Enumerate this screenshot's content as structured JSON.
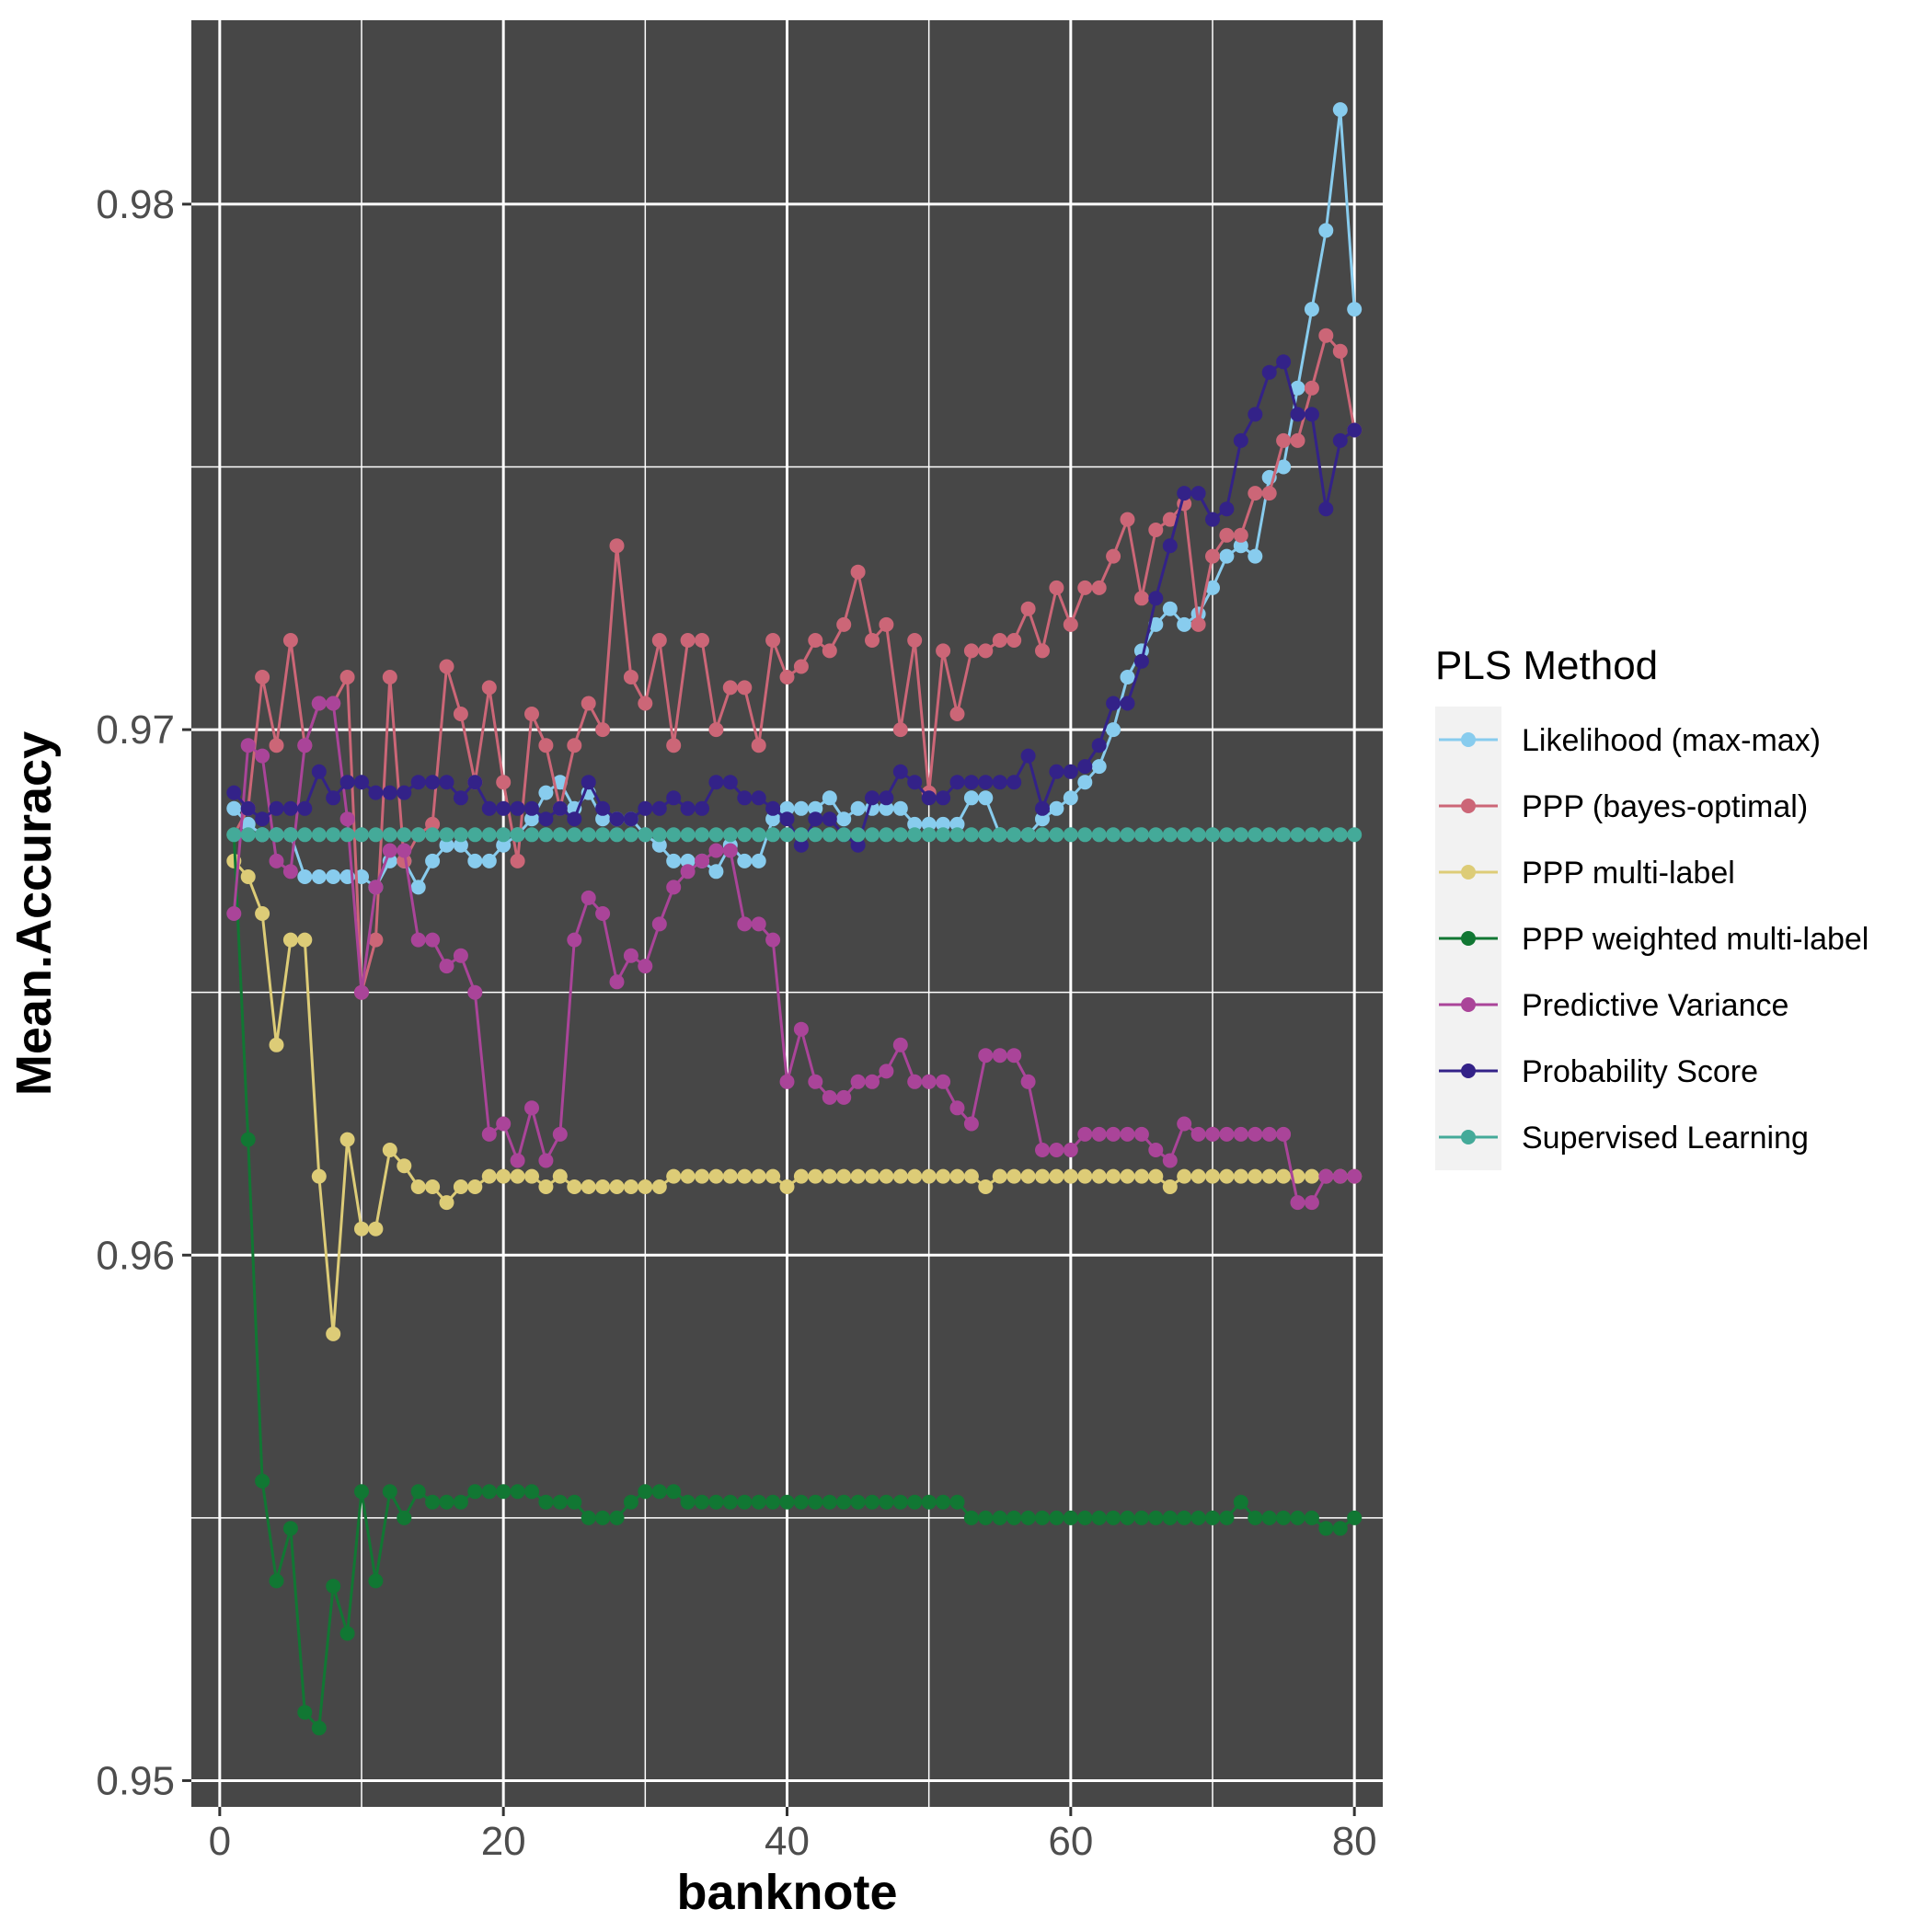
{
  "chart_data": {
    "type": "line",
    "title": "",
    "xlabel": "banknote",
    "ylabel": "Mean.Accuracy",
    "xlim": [
      -2,
      82
    ],
    "ylim": [
      0.9495,
      0.9835
    ],
    "x_ticks": [
      0,
      20,
      40,
      60,
      80
    ],
    "x_tick_labels": [
      "0",
      "20",
      "40",
      "60",
      "80"
    ],
    "y_ticks": [
      0.95,
      0.96,
      0.97,
      0.98
    ],
    "y_tick_labels": [
      "0.95",
      "0.96",
      "0.97",
      "0.98"
    ],
    "grid": true,
    "background": "#474747",
    "legend": {
      "title": "PLS Method",
      "placement": "right"
    },
    "series": [
      {
        "name": "Likelihood (max-max)",
        "color": "#88CCEE",
        "x": [
          1,
          2,
          3,
          4,
          5,
          6,
          7,
          8,
          9,
          10,
          11,
          12,
          13,
          14,
          15,
          16,
          17,
          18,
          19,
          20,
          21,
          22,
          23,
          24,
          25,
          26,
          27,
          28,
          29,
          30,
          31,
          32,
          33,
          34,
          35,
          36,
          37,
          38,
          39,
          40,
          41,
          42,
          43,
          44,
          45,
          46,
          47,
          48,
          49,
          50,
          51,
          52,
          53,
          54,
          55,
          56,
          57,
          58,
          59,
          60,
          61,
          62,
          63,
          64,
          65,
          66,
          67,
          68,
          69,
          70,
          71,
          72,
          73,
          74,
          75,
          76,
          77,
          78,
          79,
          80
        ],
        "values": [
          0.9685,
          0.9682,
          0.968,
          0.968,
          0.968,
          0.9672,
          0.9672,
          0.9672,
          0.9672,
          0.9672,
          0.967,
          0.9675,
          0.9675,
          0.967,
          0.9675,
          0.9678,
          0.9678,
          0.9675,
          0.9675,
          0.9678,
          0.968,
          0.9683,
          0.9688,
          0.969,
          0.9685,
          0.9688,
          0.9683,
          0.9683,
          0.9683,
          0.968,
          0.9678,
          0.9675,
          0.9675,
          0.9675,
          0.9673,
          0.9678,
          0.9675,
          0.9675,
          0.9683,
          0.9685,
          0.9685,
          0.9685,
          0.9687,
          0.9683,
          0.9685,
          0.9685,
          0.9685,
          0.9685,
          0.9682,
          0.9682,
          0.9682,
          0.9682,
          0.9687,
          0.9687,
          0.968,
          0.968,
          0.968,
          0.9683,
          0.9685,
          0.9687,
          0.969,
          0.9693,
          0.97,
          0.971,
          0.9715,
          0.972,
          0.9723,
          0.972,
          0.9722,
          0.9727,
          0.9733,
          0.9735,
          0.9733,
          0.9748,
          0.975,
          0.9765,
          0.978,
          0.9795,
          0.9818,
          0.978
        ]
      },
      {
        "name": "PPP (bayes-optimal)",
        "color": "#CC6677",
        "x": [
          1,
          2,
          3,
          4,
          5,
          6,
          7,
          8,
          9,
          10,
          11,
          12,
          13,
          14,
          15,
          16,
          17,
          18,
          19,
          20,
          21,
          22,
          23,
          24,
          25,
          26,
          27,
          28,
          29,
          30,
          31,
          32,
          33,
          34,
          35,
          36,
          37,
          38,
          39,
          40,
          41,
          42,
          43,
          44,
          45,
          46,
          47,
          48,
          49,
          50,
          51,
          52,
          53,
          54,
          55,
          56,
          57,
          58,
          59,
          60,
          61,
          62,
          63,
          64,
          65,
          66,
          67,
          68,
          69,
          70,
          71,
          72,
          73,
          74,
          75,
          76,
          77,
          78,
          79,
          80
        ],
        "values": [
          0.968,
          0.9685,
          0.971,
          0.9697,
          0.9717,
          0.9697,
          0.9705,
          0.9705,
          0.971,
          0.965,
          0.966,
          0.971,
          0.9675,
          0.968,
          0.9682,
          0.9712,
          0.9703,
          0.969,
          0.9708,
          0.969,
          0.9675,
          0.9703,
          0.9697,
          0.9685,
          0.9697,
          0.9705,
          0.97,
          0.9735,
          0.971,
          0.9705,
          0.9717,
          0.9697,
          0.9717,
          0.9717,
          0.97,
          0.9708,
          0.9708,
          0.9697,
          0.9717,
          0.971,
          0.9712,
          0.9717,
          0.9715,
          0.972,
          0.973,
          0.9717,
          0.972,
          0.97,
          0.9717,
          0.9688,
          0.9715,
          0.9703,
          0.9715,
          0.9715,
          0.9717,
          0.9717,
          0.9723,
          0.9715,
          0.9727,
          0.972,
          0.9727,
          0.9727,
          0.9733,
          0.974,
          0.9725,
          0.9738,
          0.974,
          0.9743,
          0.972,
          0.9733,
          0.9737,
          0.9737,
          0.9745,
          0.9745,
          0.9755,
          0.9755,
          0.9765,
          0.9775,
          0.9772,
          0.9757
        ]
      },
      {
        "name": "PPP multi-label",
        "color": "#DDCC77",
        "x": [
          1,
          2,
          3,
          4,
          5,
          6,
          7,
          8,
          9,
          10,
          11,
          12,
          13,
          14,
          15,
          16,
          17,
          18,
          19,
          20,
          21,
          22,
          23,
          24,
          25,
          26,
          27,
          28,
          29,
          30,
          31,
          32,
          33,
          34,
          35,
          36,
          37,
          38,
          39,
          40,
          41,
          42,
          43,
          44,
          45,
          46,
          47,
          48,
          49,
          50,
          51,
          52,
          53,
          54,
          55,
          56,
          57,
          58,
          59,
          60,
          61,
          62,
          63,
          64,
          65,
          66,
          67,
          68,
          69,
          70,
          71,
          72,
          73,
          74,
          75,
          76,
          77,
          78,
          79,
          80
        ],
        "values": [
          0.9675,
          0.9672,
          0.9665,
          0.964,
          0.966,
          0.966,
          0.9615,
          0.9585,
          0.9622,
          0.9605,
          0.9605,
          0.962,
          0.9617,
          0.9613,
          0.9613,
          0.961,
          0.9613,
          0.9613,
          0.9615,
          0.9615,
          0.9615,
          0.9615,
          0.9613,
          0.9615,
          0.9613,
          0.9613,
          0.9613,
          0.9613,
          0.9613,
          0.9613,
          0.9613,
          0.9615,
          0.9615,
          0.9615,
          0.9615,
          0.9615,
          0.9615,
          0.9615,
          0.9615,
          0.9613,
          0.9615,
          0.9615,
          0.9615,
          0.9615,
          0.9615,
          0.9615,
          0.9615,
          0.9615,
          0.9615,
          0.9615,
          0.9615,
          0.9615,
          0.9615,
          0.9613,
          0.9615,
          0.9615,
          0.9615,
          0.9615,
          0.9615,
          0.9615,
          0.9615,
          0.9615,
          0.9615,
          0.9615,
          0.9615,
          0.9615,
          0.9613,
          0.9615,
          0.9615,
          0.9615,
          0.9615,
          0.9615,
          0.9615,
          0.9615,
          0.9615,
          0.9615,
          0.9615,
          0.9615,
          0.9615,
          0.9615
        ]
      },
      {
        "name": "PPP weighted multi-label",
        "color": "#117733",
        "x": [
          1,
          2,
          3,
          4,
          5,
          6,
          7,
          8,
          9,
          10,
          11,
          12,
          13,
          14,
          15,
          16,
          17,
          18,
          19,
          20,
          21,
          22,
          23,
          24,
          25,
          26,
          27,
          28,
          29,
          30,
          31,
          32,
          33,
          34,
          35,
          36,
          37,
          38,
          39,
          40,
          41,
          42,
          43,
          44,
          45,
          46,
          47,
          48,
          49,
          50,
          51,
          52,
          53,
          54,
          55,
          56,
          57,
          58,
          59,
          60,
          61,
          62,
          63,
          64,
          65,
          66,
          67,
          68,
          69,
          70,
          71,
          72,
          73,
          74,
          75,
          76,
          77,
          78,
          79,
          80
        ],
        "values": [
          0.968,
          0.9622,
          0.9557,
          0.9538,
          0.9548,
          0.9513,
          0.951,
          0.9537,
          0.9528,
          0.9555,
          0.9538,
          0.9555,
          0.955,
          0.9555,
          0.9553,
          0.9553,
          0.9553,
          0.9555,
          0.9555,
          0.9555,
          0.9555,
          0.9555,
          0.9553,
          0.9553,
          0.9553,
          0.955,
          0.955,
          0.955,
          0.9553,
          0.9555,
          0.9555,
          0.9555,
          0.9553,
          0.9553,
          0.9553,
          0.9553,
          0.9553,
          0.9553,
          0.9553,
          0.9553,
          0.9553,
          0.9553,
          0.9553,
          0.9553,
          0.9553,
          0.9553,
          0.9553,
          0.9553,
          0.9553,
          0.9553,
          0.9553,
          0.9553,
          0.955,
          0.955,
          0.955,
          0.955,
          0.955,
          0.955,
          0.955,
          0.955,
          0.955,
          0.955,
          0.955,
          0.955,
          0.955,
          0.955,
          0.955,
          0.955,
          0.955,
          0.955,
          0.955,
          0.9553,
          0.955,
          0.955,
          0.955,
          0.955,
          0.955,
          0.9548,
          0.9548,
          0.955
        ]
      },
      {
        "name": "Predictive Variance",
        "color": "#AA4499",
        "x": [
          1,
          2,
          3,
          4,
          5,
          6,
          7,
          8,
          9,
          10,
          11,
          12,
          13,
          14,
          15,
          16,
          17,
          18,
          19,
          20,
          21,
          22,
          23,
          24,
          25,
          26,
          27,
          28,
          29,
          30,
          31,
          32,
          33,
          34,
          35,
          36,
          37,
          38,
          39,
          40,
          41,
          42,
          43,
          44,
          45,
          46,
          47,
          48,
          49,
          50,
          51,
          52,
          53,
          54,
          55,
          56,
          57,
          58,
          59,
          60,
          61,
          62,
          63,
          64,
          65,
          66,
          67,
          68,
          69,
          70,
          71,
          72,
          73,
          74,
          75,
          76,
          77,
          78,
          79,
          80
        ],
        "values": [
          0.9665,
          0.9697,
          0.9695,
          0.9675,
          0.9673,
          0.9697,
          0.9705,
          0.9705,
          0.9683,
          0.965,
          0.967,
          0.9677,
          0.9677,
          0.966,
          0.966,
          0.9655,
          0.9657,
          0.965,
          0.9623,
          0.9625,
          0.9618,
          0.9628,
          0.9618,
          0.9623,
          0.966,
          0.9668,
          0.9665,
          0.9652,
          0.9657,
          0.9655,
          0.9663,
          0.967,
          0.9673,
          0.9675,
          0.9677,
          0.9677,
          0.9663,
          0.9663,
          0.966,
          0.9633,
          0.9643,
          0.9633,
          0.963,
          0.963,
          0.9633,
          0.9633,
          0.9635,
          0.964,
          0.9633,
          0.9633,
          0.9633,
          0.9628,
          0.9625,
          0.9638,
          0.9638,
          0.9638,
          0.9633,
          0.962,
          0.962,
          0.962,
          0.9623,
          0.9623,
          0.9623,
          0.9623,
          0.9623,
          0.962,
          0.9618,
          0.9625,
          0.9623,
          0.9623,
          0.9623,
          0.9623,
          0.9623,
          0.9623,
          0.9623,
          0.961,
          0.961,
          0.9615,
          0.9615,
          0.9615
        ]
      },
      {
        "name": "Probability Score",
        "color": "#332288",
        "x": [
          1,
          2,
          3,
          4,
          5,
          6,
          7,
          8,
          9,
          10,
          11,
          12,
          13,
          14,
          15,
          16,
          17,
          18,
          19,
          20,
          21,
          22,
          23,
          24,
          25,
          26,
          27,
          28,
          29,
          30,
          31,
          32,
          33,
          34,
          35,
          36,
          37,
          38,
          39,
          40,
          41,
          42,
          43,
          44,
          45,
          46,
          47,
          48,
          49,
          50,
          51,
          52,
          53,
          54,
          55,
          56,
          57,
          58,
          59,
          60,
          61,
          62,
          63,
          64,
          65,
          66,
          67,
          68,
          69,
          70,
          71,
          72,
          73,
          74,
          75,
          76,
          77,
          78,
          79,
          80
        ],
        "values": [
          0.9688,
          0.9685,
          0.9683,
          0.9685,
          0.9685,
          0.9685,
          0.9692,
          0.9687,
          0.969,
          0.969,
          0.9688,
          0.9688,
          0.9688,
          0.969,
          0.969,
          0.969,
          0.9687,
          0.969,
          0.9685,
          0.9685,
          0.9685,
          0.9685,
          0.9683,
          0.9685,
          0.9683,
          0.969,
          0.9685,
          0.9683,
          0.9683,
          0.9685,
          0.9685,
          0.9687,
          0.9685,
          0.9685,
          0.969,
          0.969,
          0.9687,
          0.9687,
          0.9685,
          0.9683,
          0.9678,
          0.9683,
          0.9683,
          0.968,
          0.9678,
          0.9687,
          0.9687,
          0.9692,
          0.969,
          0.9687,
          0.9687,
          0.969,
          0.969,
          0.969,
          0.969,
          0.969,
          0.9695,
          0.9685,
          0.9692,
          0.9692,
          0.9693,
          0.9697,
          0.9705,
          0.9705,
          0.9713,
          0.9725,
          0.9735,
          0.9745,
          0.9745,
          0.974,
          0.9742,
          0.9755,
          0.976,
          0.9768,
          0.977,
          0.976,
          0.976,
          0.9742,
          0.9755,
          0.9757
        ]
      },
      {
        "name": "Supervised Learning",
        "color": "#44AA99",
        "x": [
          1,
          2,
          3,
          4,
          5,
          6,
          7,
          8,
          9,
          10,
          11,
          12,
          13,
          14,
          15,
          16,
          17,
          18,
          19,
          20,
          21,
          22,
          23,
          24,
          25,
          26,
          27,
          28,
          29,
          30,
          31,
          32,
          33,
          34,
          35,
          36,
          37,
          38,
          39,
          40,
          41,
          42,
          43,
          44,
          45,
          46,
          47,
          48,
          49,
          50,
          51,
          52,
          53,
          54,
          55,
          56,
          57,
          58,
          59,
          60,
          61,
          62,
          63,
          64,
          65,
          66,
          67,
          68,
          69,
          70,
          71,
          72,
          73,
          74,
          75,
          76,
          77,
          78,
          79,
          80
        ],
        "values": [
          0.968,
          0.968,
          0.968,
          0.968,
          0.968,
          0.968,
          0.968,
          0.968,
          0.968,
          0.968,
          0.968,
          0.968,
          0.968,
          0.968,
          0.968,
          0.968,
          0.968,
          0.968,
          0.968,
          0.968,
          0.968,
          0.968,
          0.968,
          0.968,
          0.968,
          0.968,
          0.968,
          0.968,
          0.968,
          0.968,
          0.968,
          0.968,
          0.968,
          0.968,
          0.968,
          0.968,
          0.968,
          0.968,
          0.968,
          0.968,
          0.968,
          0.968,
          0.968,
          0.968,
          0.968,
          0.968,
          0.968,
          0.968,
          0.968,
          0.968,
          0.968,
          0.968,
          0.968,
          0.968,
          0.968,
          0.968,
          0.968,
          0.968,
          0.968,
          0.968,
          0.968,
          0.968,
          0.968,
          0.968,
          0.968,
          0.968,
          0.968,
          0.968,
          0.968,
          0.968,
          0.968,
          0.968,
          0.968,
          0.968,
          0.968,
          0.968,
          0.968,
          0.968,
          0.968,
          0.968
        ]
      }
    ]
  }
}
